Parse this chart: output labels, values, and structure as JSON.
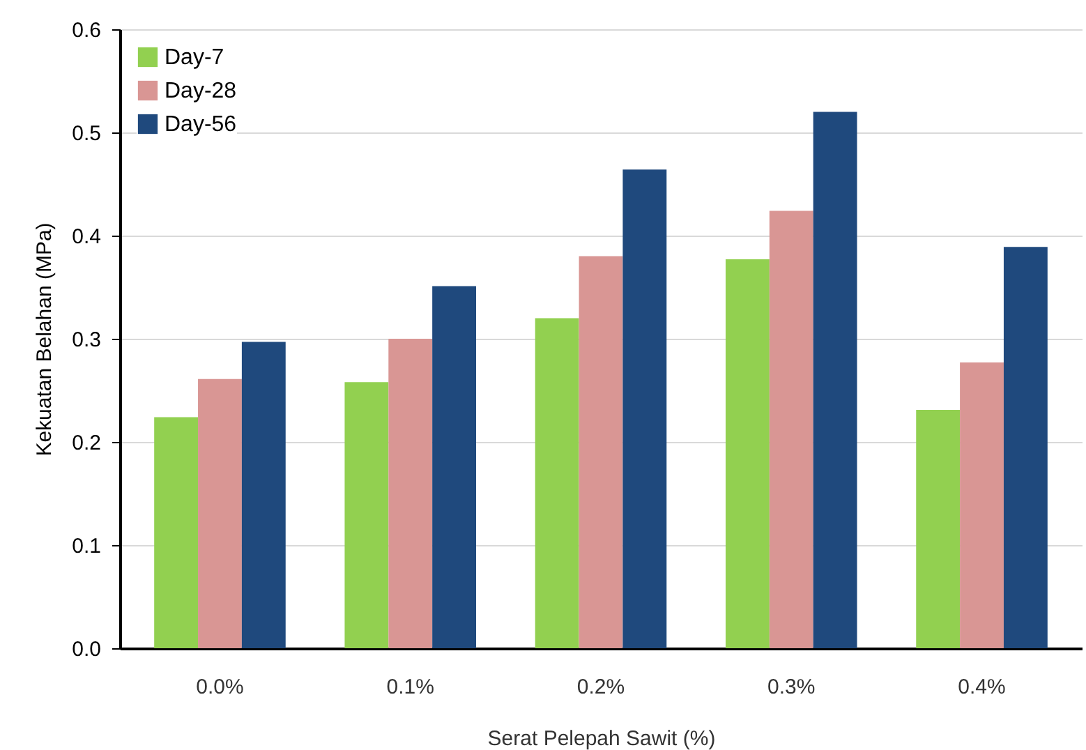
{
  "chart_data": {
    "type": "bar",
    "xlabel": "Serat Pelepah Sawit (%)",
    "ylabel": "Kekuatan Belahan (MPa)",
    "categories": [
      "0.0%",
      "0.1%",
      "0.2%",
      "0.3%",
      "0.4%"
    ],
    "series": [
      {
        "name": "Day-7",
        "color": "#92d050",
        "values": [
          0.224,
          0.258,
          0.32,
          0.377,
          0.231
        ]
      },
      {
        "name": "Day-28",
        "color": "#d99694",
        "values": [
          0.261,
          0.3,
          0.38,
          0.424,
          0.277
        ]
      },
      {
        "name": "Day-56",
        "color": "#1f497d",
        "values": [
          0.297,
          0.351,
          0.464,
          0.52,
          0.389
        ]
      }
    ],
    "ylim": [
      0,
      0.6
    ],
    "yticks": [
      {
        "value": 0,
        "label": "0.0"
      },
      {
        "value": 0.1,
        "label": "0.1"
      },
      {
        "value": 0.2,
        "label": "0.2"
      },
      {
        "value": 0.3,
        "label": "0.3"
      },
      {
        "value": 0.4,
        "label": "0.4"
      },
      {
        "value": 0.5,
        "label": "0.5"
      },
      {
        "value": 0.6,
        "label": "0.6"
      }
    ],
    "grid": "y",
    "legend": "top left"
  }
}
